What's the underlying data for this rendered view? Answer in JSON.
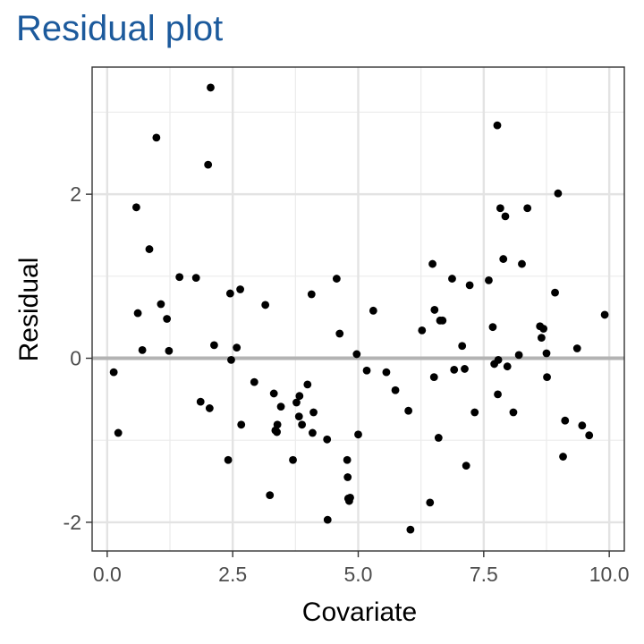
{
  "chart_data": {
    "type": "scatter",
    "title": "Residual plot",
    "xlabel": "Covariate",
    "ylabel": "Residual",
    "xlim": [
      -0.3,
      10.3
    ],
    "ylim": [
      -2.35,
      3.55
    ],
    "x_ticks": [
      0.0,
      2.5,
      5.0,
      7.5,
      10.0
    ],
    "x_tick_labels": [
      "0.0",
      "2.5",
      "5.0",
      "7.5",
      "10.0"
    ],
    "y_ticks": [
      -2,
      0,
      2
    ],
    "y_tick_labels": [
      "-2",
      "0",
      "2"
    ],
    "grid": true,
    "reference_line": {
      "y": 0,
      "color": "#b3b3b3"
    },
    "point_color": "#000000",
    "title_color": "#1c5a9c",
    "points": [
      {
        "x": 0.13,
        "y": -0.17
      },
      {
        "x": 0.22,
        "y": -0.91
      },
      {
        "x": 0.58,
        "y": 1.84
      },
      {
        "x": 0.61,
        "y": 0.55
      },
      {
        "x": 0.7,
        "y": 0.1
      },
      {
        "x": 0.84,
        "y": 1.33
      },
      {
        "x": 0.98,
        "y": 2.69
      },
      {
        "x": 1.07,
        "y": 0.66
      },
      {
        "x": 1.19,
        "y": 0.48
      },
      {
        "x": 1.23,
        "y": 0.09
      },
      {
        "x": 1.44,
        "y": 0.99
      },
      {
        "x": 1.77,
        "y": 0.98
      },
      {
        "x": 1.86,
        "y": -0.53
      },
      {
        "x": 2.01,
        "y": 2.36
      },
      {
        "x": 2.04,
        "y": -0.61
      },
      {
        "x": 2.06,
        "y": 3.3
      },
      {
        "x": 2.13,
        "y": 0.16
      },
      {
        "x": 2.41,
        "y": -1.24
      },
      {
        "x": 2.45,
        "y": 0.79
      },
      {
        "x": 2.47,
        "y": -0.02
      },
      {
        "x": 2.58,
        "y": 0.13
      },
      {
        "x": 2.65,
        "y": 0.84
      },
      {
        "x": 2.67,
        "y": -0.81
      },
      {
        "x": 2.93,
        "y": -0.29
      },
      {
        "x": 3.15,
        "y": 0.65
      },
      {
        "x": 3.24,
        "y": -1.67
      },
      {
        "x": 3.32,
        "y": -0.43
      },
      {
        "x": 3.35,
        "y": -0.88
      },
      {
        "x": 3.38,
        "y": -0.9
      },
      {
        "x": 3.39,
        "y": -0.81
      },
      {
        "x": 3.46,
        "y": -0.59
      },
      {
        "x": 3.7,
        "y": -1.24
      },
      {
        "x": 3.77,
        "y": -0.54
      },
      {
        "x": 3.82,
        "y": -0.71
      },
      {
        "x": 3.83,
        "y": -0.46
      },
      {
        "x": 3.88,
        "y": -0.81
      },
      {
        "x": 3.99,
        "y": -0.32
      },
      {
        "x": 4.07,
        "y": 0.78
      },
      {
        "x": 4.09,
        "y": -0.91
      },
      {
        "x": 4.11,
        "y": -0.66
      },
      {
        "x": 4.38,
        "y": -0.99
      },
      {
        "x": 4.39,
        "y": -1.97
      },
      {
        "x": 4.57,
        "y": 0.97
      },
      {
        "x": 4.63,
        "y": 0.3
      },
      {
        "x": 4.78,
        "y": -1.24
      },
      {
        "x": 4.79,
        "y": -1.45
      },
      {
        "x": 4.8,
        "y": -1.71
      },
      {
        "x": 4.82,
        "y": -1.74
      },
      {
        "x": 4.84,
        "y": -1.7
      },
      {
        "x": 4.97,
        "y": 0.05
      },
      {
        "x": 5.0,
        "y": -0.93
      },
      {
        "x": 5.17,
        "y": -0.15
      },
      {
        "x": 5.3,
        "y": 0.58
      },
      {
        "x": 5.56,
        "y": -0.17
      },
      {
        "x": 5.74,
        "y": -0.39
      },
      {
        "x": 6.0,
        "y": -0.64
      },
      {
        "x": 6.04,
        "y": -2.09
      },
      {
        "x": 6.27,
        "y": 0.34
      },
      {
        "x": 6.43,
        "y": -1.76
      },
      {
        "x": 6.48,
        "y": 1.15
      },
      {
        "x": 6.52,
        "y": 0.59
      },
      {
        "x": 6.51,
        "y": -0.23
      },
      {
        "x": 6.6,
        "y": -0.97
      },
      {
        "x": 6.63,
        "y": 0.46
      },
      {
        "x": 6.68,
        "y": 0.46
      },
      {
        "x": 6.87,
        "y": 0.97
      },
      {
        "x": 6.91,
        "y": -0.14
      },
      {
        "x": 7.07,
        "y": 0.15
      },
      {
        "x": 7.12,
        "y": -0.13
      },
      {
        "x": 7.15,
        "y": -1.31
      },
      {
        "x": 7.22,
        "y": 0.89
      },
      {
        "x": 7.32,
        "y": -0.66
      },
      {
        "x": 7.6,
        "y": 0.95
      },
      {
        "x": 7.68,
        "y": 0.38
      },
      {
        "x": 7.71,
        "y": -0.07
      },
      {
        "x": 7.77,
        "y": 2.84
      },
      {
        "x": 7.78,
        "y": -0.44
      },
      {
        "x": 7.79,
        "y": -0.02
      },
      {
        "x": 7.83,
        "y": 1.83
      },
      {
        "x": 7.89,
        "y": 1.21
      },
      {
        "x": 7.93,
        "y": 1.73
      },
      {
        "x": 7.97,
        "y": -0.1
      },
      {
        "x": 8.09,
        "y": -0.66
      },
      {
        "x": 8.2,
        "y": 0.04
      },
      {
        "x": 8.26,
        "y": 1.15
      },
      {
        "x": 8.37,
        "y": 1.83
      },
      {
        "x": 8.62,
        "y": 0.39
      },
      {
        "x": 8.65,
        "y": 0.25
      },
      {
        "x": 8.69,
        "y": 0.36
      },
      {
        "x": 8.75,
        "y": 0.06
      },
      {
        "x": 8.76,
        "y": -0.23
      },
      {
        "x": 8.92,
        "y": 0.8
      },
      {
        "x": 8.98,
        "y": 2.01
      },
      {
        "x": 9.08,
        "y": -1.2
      },
      {
        "x": 9.12,
        "y": -0.76
      },
      {
        "x": 9.36,
        "y": 0.12
      },
      {
        "x": 9.46,
        "y": -0.82
      },
      {
        "x": 9.6,
        "y": -0.94
      },
      {
        "x": 9.91,
        "y": 0.53
      }
    ]
  }
}
